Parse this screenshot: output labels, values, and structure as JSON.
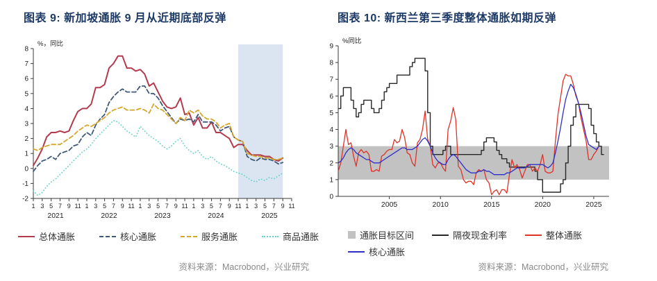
{
  "page": {
    "background": "#ffffff"
  },
  "chart_data": [
    {
      "id": "figure-9",
      "type": "line",
      "title": "图表 9: 新加坡通胀 9 月从近期底部反弹",
      "unit_label": "%，同比",
      "ylim": [
        -2,
        8
      ],
      "yticks": [
        8,
        7,
        6,
        5,
        4,
        3,
        2,
        1,
        0,
        -1,
        -2
      ],
      "x_axis": {
        "frequency": "monthly",
        "start": "2021-01",
        "span_months": 58,
        "month_tick_labels": [
          "1",
          "3",
          "5",
          "7",
          "9",
          "11"
        ],
        "year_labels": [
          "2021",
          "2022",
          "2023",
          "2024",
          "2025"
        ]
      },
      "highlight": {
        "from_month": 46,
        "to_month": 56,
        "color": "#dbe5f2"
      },
      "grid": "off",
      "legend_position": "bottom",
      "series": [
        {
          "name": "总体通胀",
          "color": "#b13a4d",
          "dash": "solid",
          "values": [
            0.2,
            0.7,
            1.3,
            2.1,
            2.4,
            2.4,
            2.5,
            2.4,
            2.5,
            3.2,
            3.8,
            4.0,
            4.0,
            4.3,
            5.4,
            5.4,
            5.6,
            6.7,
            7.0,
            7.5,
            7.5,
            6.7,
            6.7,
            6.5,
            6.6,
            6.3,
            5.5,
            5.7,
            5.1,
            4.5,
            4.1,
            4.0,
            4.1,
            4.7,
            3.6,
            3.7,
            2.9,
            3.4,
            2.7,
            2.7,
            3.1,
            2.4,
            2.4,
            2.2,
            2.0,
            1.4,
            1.6,
            1.6,
            1.2,
            0.9,
            0.9,
            0.9,
            0.8,
            0.8,
            0.6,
            0.5,
            0.7
          ]
        },
        {
          "name": "核心通胀",
          "color": "#3f5878",
          "dash": "dashed",
          "values": [
            -0.2,
            0.2,
            0.5,
            0.6,
            0.8,
            0.6,
            1.0,
            1.1,
            1.2,
            1.5,
            1.6,
            2.1,
            2.4,
            2.2,
            2.9,
            3.3,
            3.6,
            4.4,
            4.8,
            5.1,
            5.3,
            5.1,
            5.1,
            5.1,
            5.5,
            5.5,
            5.0,
            5.0,
            4.7,
            4.2,
            3.8,
            3.4,
            3.0,
            3.3,
            3.2,
            3.3,
            3.1,
            3.6,
            3.1,
            3.1,
            3.1,
            2.9,
            2.5,
            2.7,
            2.8,
            2.1,
            1.9,
            1.8,
            0.8,
            0.6,
            0.5,
            0.7,
            0.6,
            0.6,
            0.5,
            0.3,
            0.4
          ]
        },
        {
          "name": "服务通胀",
          "color": "#d6a62c",
          "dash": "dashed",
          "values": [
            1.3,
            1.2,
            1.4,
            1.5,
            1.6,
            1.6,
            1.6,
            1.8,
            2.0,
            2.2,
            2.5,
            2.7,
            2.9,
            2.8,
            3.0,
            3.2,
            3.4,
            3.7,
            3.9,
            4.0,
            4.1,
            3.9,
            3.9,
            3.9,
            4.0,
            3.9,
            3.7,
            4.3,
            4.0,
            3.9,
            3.6,
            3.3,
            3.0,
            3.4,
            3.2,
            3.9,
            3.7,
            3.9,
            3.5,
            3.3,
            3.3,
            3.1,
            2.7,
            2.9,
            3.0,
            2.1,
            1.9,
            1.8,
            1.0,
            0.9,
            0.8,
            0.8,
            0.7,
            0.7,
            0.6,
            0.6,
            0.7
          ]
        },
        {
          "name": "商品通胀",
          "color": "#63d2c6",
          "dash": "dotted",
          "values": [
            -1.5,
            -1.8,
            -1.6,
            -1.2,
            -0.9,
            -0.7,
            -0.4,
            -0.1,
            0.2,
            0.5,
            0.8,
            1.1,
            1.3,
            1.6,
            2.0,
            2.3,
            2.6,
            2.9,
            3.2,
            3.1,
            2.8,
            2.5,
            2.3,
            2.1,
            2.8,
            2.5,
            2.2,
            2.0,
            1.8,
            1.5,
            1.3,
            1.5,
            1.8,
            2.0,
            1.5,
            1.2,
            1.0,
            1.2,
            0.8,
            0.6,
            0.8,
            0.5,
            0.3,
            0.2,
            0.0,
            -0.2,
            -0.3,
            -0.4,
            -0.6,
            -0.8,
            -0.9,
            -0.7,
            -0.8,
            -0.6,
            -0.7,
            -0.5,
            -0.3
          ]
        }
      ],
      "source": "资料来源：Macrobond，兴业研究"
    },
    {
      "id": "figure-10",
      "type": "line",
      "title": "图表 10: 新西兰第三季度整体通胀如期反弹",
      "unit_label": "%同比",
      "ylim": [
        0,
        9
      ],
      "yticks": [
        9,
        8,
        7,
        6,
        5,
        4,
        3,
        2,
        1,
        0
      ],
      "xlim": [
        2000,
        2026.5
      ],
      "xticks": [
        "2005",
        "2010",
        "2015",
        "2020",
        "2025"
      ],
      "band": {
        "label": "通胀目标区间",
        "from": 1,
        "to": 3,
        "color": "#c2c2c2"
      },
      "grid": "off",
      "legend_position": "bottom",
      "series": [
        {
          "name": "隔夜现金利率",
          "color": "#262626",
          "style": "step",
          "x_start": 2000.0,
          "dx": 0.25,
          "values": [
            5.25,
            6.0,
            6.5,
            6.5,
            6.5,
            5.75,
            5.25,
            4.75,
            5.0,
            5.5,
            5.75,
            5.75,
            5.75,
            5.25,
            5.0,
            5.0,
            5.25,
            5.75,
            6.25,
            6.5,
            6.75,
            6.75,
            6.75,
            7.25,
            7.25,
            7.25,
            7.25,
            7.25,
            7.75,
            8.0,
            8.25,
            8.25,
            8.25,
            8.25,
            7.5,
            5.0,
            3.0,
            2.5,
            2.5,
            2.5,
            2.5,
            2.75,
            3.0,
            3.0,
            2.5,
            2.5,
            2.5,
            2.5,
            2.5,
            2.5,
            2.5,
            2.5,
            2.5,
            2.5,
            2.5,
            2.5,
            2.75,
            3.25,
            3.5,
            3.5,
            3.5,
            3.25,
            2.75,
            2.5,
            2.25,
            2.25,
            2.0,
            1.75,
            1.75,
            1.75,
            1.75,
            1.75,
            1.75,
            1.75,
            1.75,
            1.75,
            1.75,
            1.5,
            1.0,
            1.0,
            0.25,
            0.25,
            0.25,
            0.25,
            0.25,
            0.25,
            0.25,
            0.75,
            1.0,
            2.0,
            3.0,
            4.25,
            4.75,
            5.5,
            5.5,
            5.5,
            5.5,
            5.5,
            5.25,
            4.25,
            3.75,
            3.25,
            3.0,
            2.5
          ]
        },
        {
          "name": "整体通胀",
          "color": "#e03127",
          "style": "line",
          "x_start": 2000.0,
          "dx": 0.25,
          "values": [
            1.5,
            2.0,
            3.0,
            4.0,
            3.1,
            3.2,
            2.4,
            1.8,
            2.6,
            2.8,
            2.6,
            2.7,
            2.5,
            1.5,
            1.5,
            1.6,
            1.5,
            2.4,
            2.5,
            2.7,
            2.8,
            2.8,
            3.4,
            3.2,
            3.3,
            4.0,
            3.5,
            2.6,
            2.5,
            2.0,
            1.8,
            3.2,
            3.4,
            4.0,
            5.1,
            3.4,
            3.0,
            1.9,
            1.7,
            2.0,
            2.0,
            1.7,
            1.5,
            4.0,
            4.5,
            5.3,
            4.6,
            1.8,
            1.6,
            1.0,
            0.8,
            0.9,
            0.9,
            0.7,
            1.4,
            1.6,
            1.5,
            1.6,
            1.0,
            0.8,
            0.1,
            0.3,
            0.4,
            0.1,
            0.4,
            0.4,
            0.2,
            1.3,
            2.2,
            1.7,
            1.9,
            1.6,
            1.1,
            1.5,
            1.9,
            1.9,
            1.5,
            1.7,
            1.5,
            1.9,
            2.5,
            1.5,
            1.4,
            1.4,
            1.5,
            3.3,
            4.9,
            5.9,
            6.9,
            7.3,
            7.2,
            7.2,
            6.7,
            6.0,
            5.6,
            4.7,
            4.0,
            3.3,
            2.2,
            2.2,
            2.5,
            2.7,
            3.0
          ]
        },
        {
          "name": "核心通胀",
          "color": "#2e2ec9",
          "style": "line",
          "x_start": 2000.0,
          "dx": 0.25,
          "values": [
            2.0,
            2.1,
            2.3,
            2.6,
            2.8,
            2.9,
            2.8,
            2.6,
            2.5,
            2.4,
            2.3,
            2.2,
            2.2,
            2.1,
            2.0,
            2.0,
            2.0,
            2.1,
            2.2,
            2.3,
            2.4,
            2.5,
            2.6,
            2.7,
            2.8,
            2.9,
            2.9,
            2.8,
            2.8,
            2.8,
            2.9,
            3.0,
            3.2,
            3.4,
            3.5,
            3.3,
            3.0,
            2.6,
            2.3,
            2.1,
            2.0,
            1.9,
            1.9,
            2.2,
            2.4,
            2.5,
            2.4,
            2.2,
            2.0,
            1.8,
            1.6,
            1.5,
            1.4,
            1.4,
            1.4,
            1.5,
            1.5,
            1.6,
            1.5,
            1.5,
            1.4,
            1.3,
            1.3,
            1.3,
            1.3,
            1.3,
            1.4,
            1.4,
            1.5,
            1.6,
            1.7,
            1.7,
            1.7,
            1.7,
            1.8,
            1.9,
            1.9,
            1.9,
            1.9,
            1.9,
            1.9,
            1.8,
            1.7,
            1.8,
            2.0,
            2.6,
            3.3,
            4.1,
            5.0,
            5.8,
            6.3,
            6.7,
            6.5,
            6.1,
            5.6,
            5.0,
            4.3,
            3.6,
            3.1,
            3.0,
            2.9,
            2.8,
            3.0
          ]
        }
      ],
      "source": "资料来源：Macrobond，兴业研究"
    }
  ]
}
